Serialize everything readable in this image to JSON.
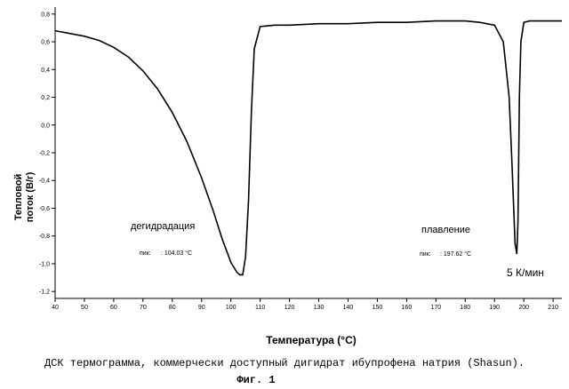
{
  "chart_data": {
    "type": "line",
    "xlabel": "Температура (°C)",
    "ylabel_lines": [
      "Тепловой",
      "поток (В/г)"
    ],
    "xlim": [
      40,
      213
    ],
    "ylim": [
      -1.25,
      0.85
    ],
    "x_ticks": [
      40,
      50,
      60,
      70,
      80,
      90,
      100,
      110,
      120,
      130,
      140,
      150,
      160,
      170,
      180,
      190,
      200,
      210
    ],
    "y_ticks": [
      0.8,
      0.6,
      0.4,
      0.2,
      0.0,
      -0.2,
      -0.4,
      -0.6,
      -0.8,
      -1.0,
      -1.2
    ],
    "y_tick_labels": [
      "0,8",
      "0,6",
      "0,4",
      "0,2",
      "0,0",
      "-0,2",
      "-0,4",
      "-0,6",
      "-0,8",
      "-1,0",
      "-1,2"
    ],
    "grid": false,
    "series": [
      {
        "x": [
          40,
          45,
          50,
          55,
          60,
          65,
          70,
          75,
          80,
          85,
          90,
          94,
          97,
          100,
          102,
          103,
          104.03,
          105,
          106,
          107,
          108,
          110,
          115,
          120,
          130,
          140,
          150,
          160,
          170,
          180,
          185,
          190,
          193,
          195,
          196,
          197,
          197.62,
          198,
          198.5,
          199,
          200,
          202,
          205,
          210,
          213
        ],
        "y": [
          0.68,
          0.66,
          0.64,
          0.61,
          0.56,
          0.49,
          0.39,
          0.26,
          0.09,
          -0.12,
          -0.38,
          -0.62,
          -0.82,
          -0.99,
          -1.06,
          -1.08,
          -1.08,
          -0.95,
          -0.55,
          0.1,
          0.55,
          0.71,
          0.72,
          0.72,
          0.73,
          0.73,
          0.74,
          0.74,
          0.75,
          0.75,
          0.74,
          0.72,
          0.6,
          0.2,
          -0.3,
          -0.85,
          -0.93,
          -0.7,
          0.2,
          0.6,
          0.74,
          0.75,
          0.75,
          0.75,
          0.75
        ]
      }
    ],
    "annotations": [
      {
        "text": "дегидрадация",
        "kind": "label"
      },
      {
        "text": "пик:",
        "kind": "peak-prefix"
      },
      {
        "text": ": 104.03 °C",
        "kind": "peak-value"
      },
      {
        "text": "плавление",
        "kind": "label"
      },
      {
        "text": "пик:",
        "kind": "peak-prefix"
      },
      {
        "text": ": 197.62 °C",
        "kind": "peak-value"
      },
      {
        "text": "5 К/мин",
        "kind": "rate"
      }
    ]
  },
  "caption": {
    "line1": "ДСК термограмма, коммерчески доступный дигидрат ибупрофена натрия (Shasun).",
    "line2": "Фиг. 1"
  }
}
